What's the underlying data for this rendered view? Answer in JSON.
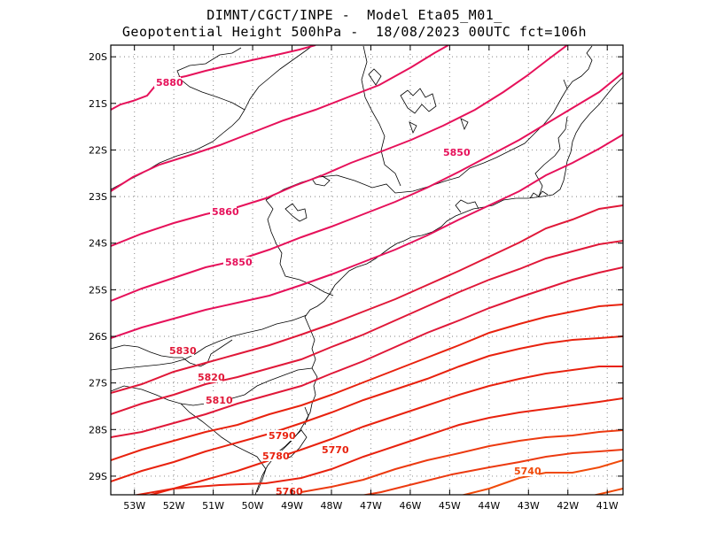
{
  "header": {
    "line1": "DIMNT/CGCT/INPE -  Model Eta05_M01_",
    "line2": "Geopotential Height 500hPa -  18/08/2023 00UTC fct=106h"
  },
  "map": {
    "lon_range": [
      -53.6,
      -40.6
    ],
    "lat_range": [
      -29.4,
      -19.75
    ],
    "x_ticks": [
      {
        "lon": -53,
        "label": "53W"
      },
      {
        "lon": -52,
        "label": "52W"
      },
      {
        "lon": -51,
        "label": "51W"
      },
      {
        "lon": -50,
        "label": "50W"
      },
      {
        "lon": -49,
        "label": "49W"
      },
      {
        "lon": -48,
        "label": "48W"
      },
      {
        "lon": -47,
        "label": "47W"
      },
      {
        "lon": -46,
        "label": "46W"
      },
      {
        "lon": -45,
        "label": "45W"
      },
      {
        "lon": -44,
        "label": "44W"
      },
      {
        "lon": -43,
        "label": "43W"
      },
      {
        "lon": -42,
        "label": "42W"
      },
      {
        "lon": -41,
        "label": "41W"
      }
    ],
    "y_ticks": [
      {
        "lat": -20,
        "label": "20S"
      },
      {
        "lat": -21,
        "label": "21S"
      },
      {
        "lat": -22,
        "label": "22S"
      },
      {
        "lat": -23,
        "label": "23S"
      },
      {
        "lat": -24,
        "label": "24S"
      },
      {
        "lat": -25,
        "label": "25S"
      },
      {
        "lat": -26,
        "label": "26S"
      },
      {
        "lat": -27,
        "label": "27S"
      },
      {
        "lat": -28,
        "label": "28S"
      },
      {
        "lat": -29,
        "label": "29S"
      }
    ],
    "grid_style": "dotted"
  },
  "contour_labels": [
    {
      "text": "5880",
      "color": "#e6115a"
    },
    {
      "text": "5860",
      "color": "#e6115a"
    },
    {
      "text": "5850",
      "color": "#e6115a"
    },
    {
      "text": "5850",
      "color": "#e6115a"
    },
    {
      "text": "5830",
      "color": "#e01838"
    },
    {
      "text": "5820",
      "color": "#e01838"
    },
    {
      "text": "5810",
      "color": "#e01838"
    },
    {
      "text": "5790",
      "color": "#e8220e"
    },
    {
      "text": "5780",
      "color": "#e8220e"
    },
    {
      "text": "5770",
      "color": "#e8220e"
    },
    {
      "text": "5760",
      "color": "#e8220e"
    },
    {
      "text": "5740",
      "color": "#f04a0a"
    }
  ]
}
